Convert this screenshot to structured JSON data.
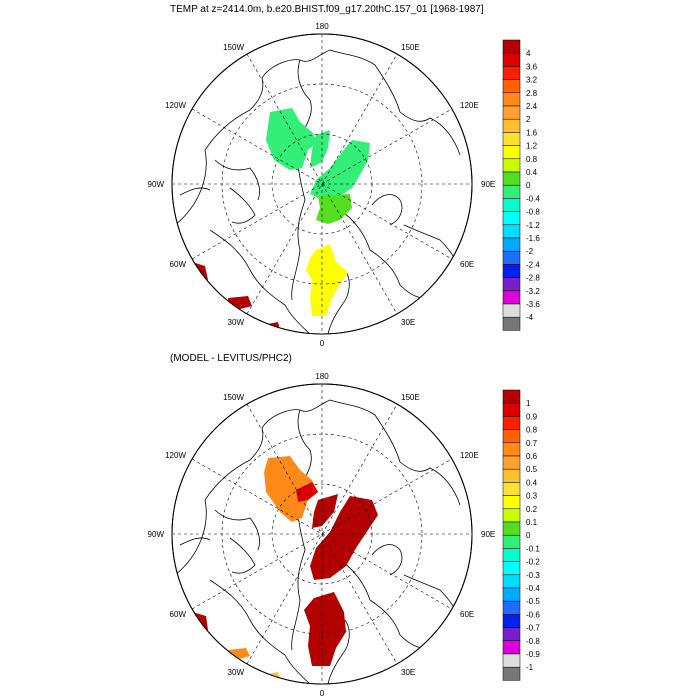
{
  "panel_top": {
    "title": "TEMP at z=2414.0m, b.e20.BHIST.f09_g17.20thC.157_01 [1968-1987]",
    "lon_labels": [
      "180",
      "150E",
      "120E",
      "90E",
      "60E",
      "30E",
      "0",
      "30W",
      "60W",
      "90W",
      "120W",
      "150W"
    ],
    "colorbar": {
      "labels": [
        "4",
        "3.6",
        "3.2",
        "2.8",
        "2.4",
        "2",
        "1.6",
        "1.2",
        "0.8",
        "0.4",
        "0",
        "-0.4",
        "-0.8",
        "-1.2",
        "-1.6",
        "-2",
        "-2.4",
        "-2.8",
        "-3.2",
        "-3.6",
        "-4"
      ],
      "colors": [
        "#b30000",
        "#dd0000",
        "#ff2000",
        "#ff6000",
        "#ff8a1a",
        "#ffa033",
        "#ffc030",
        "#ffe030",
        "#ffff00",
        "#c8ff00",
        "#55dd22",
        "#33ee77",
        "#00ffcc",
        "#00ffff",
        "#00ddff",
        "#00aaff",
        "#1f6dff",
        "#0022ee",
        "#7a1fcc",
        "#dd00dd",
        "#dddddd",
        "#777777"
      ]
    }
  },
  "panel_bottom": {
    "title": "(MODEL - LEVITUS/PHC2)",
    "lon_labels": [
      "180",
      "150E",
      "120E",
      "90E",
      "60E",
      "30E",
      "0",
      "30W",
      "60W",
      "90W",
      "120W",
      "150W"
    ],
    "colorbar": {
      "labels": [
        "1",
        "0.9",
        "0.8",
        "0.7",
        "0.6",
        "0.5",
        "0.4",
        "0.3",
        "0.2",
        "0.1",
        "0",
        "-0.1",
        "-0.2",
        "-0.3",
        "-0.4",
        "-0.5",
        "-0.6",
        "-0.7",
        "-0.8",
        "-0.9",
        "-1"
      ],
      "colors": [
        "#b30000",
        "#dd0000",
        "#ff2000",
        "#ff6000",
        "#ff8a1a",
        "#ffa033",
        "#ffc030",
        "#ffe030",
        "#ffff00",
        "#c8ff00",
        "#55dd22",
        "#33ee77",
        "#00ffcc",
        "#00ffff",
        "#00ddff",
        "#00aaff",
        "#1f6dff",
        "#0022ee",
        "#7a1fcc",
        "#dd00dd",
        "#dddddd",
        "#777777"
      ]
    }
  },
  "field_colors": {
    "green": "#33ee77",
    "bright_green": "#55dd22",
    "yellow": "#ffff00",
    "red": "#b30000",
    "dark_red": "#dd0000",
    "orange": "#ff8a1a"
  }
}
